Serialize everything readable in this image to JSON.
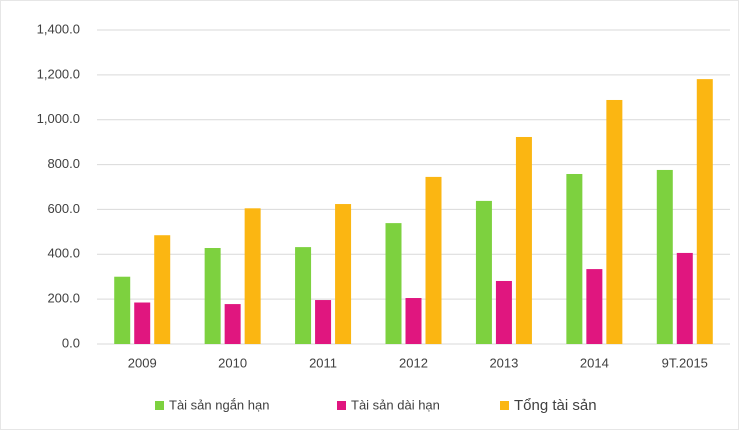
{
  "chart_data": {
    "type": "bar",
    "categories": [
      "2009",
      "2010",
      "2011",
      "2012",
      "2013",
      "2014",
      "9T.2015"
    ],
    "series": [
      {
        "name": "Tài sản ngắn hạn",
        "color": "#7dd13f",
        "values": [
          300,
          428,
          432,
          539,
          638,
          758,
          776
        ]
      },
      {
        "name": "Tài sản dài hạn",
        "color": "#e0167f",
        "values": [
          185,
          178,
          196,
          205,
          281,
          334,
          406
        ]
      },
      {
        "name": "Tổng tài sản",
        "color": "#fbb612",
        "values": [
          485,
          605,
          624,
          745,
          923,
          1088,
          1181
        ]
      }
    ],
    "ylim": [
      0,
      1400
    ],
    "yticks": [
      {
        "value": 0,
        "label": "0.0"
      },
      {
        "value": 200,
        "label": "200.0"
      },
      {
        "value": 400,
        "label": "400.0"
      },
      {
        "value": 600,
        "label": "600.0"
      },
      {
        "value": 800,
        "label": "800.0"
      },
      {
        "value": 1000,
        "label": "1,000.0"
      },
      {
        "value": 1200,
        "label": "1,200.0"
      },
      {
        "value": 1400,
        "label": "1,400.0"
      }
    ],
    "grid": true,
    "legend": "bottom"
  }
}
